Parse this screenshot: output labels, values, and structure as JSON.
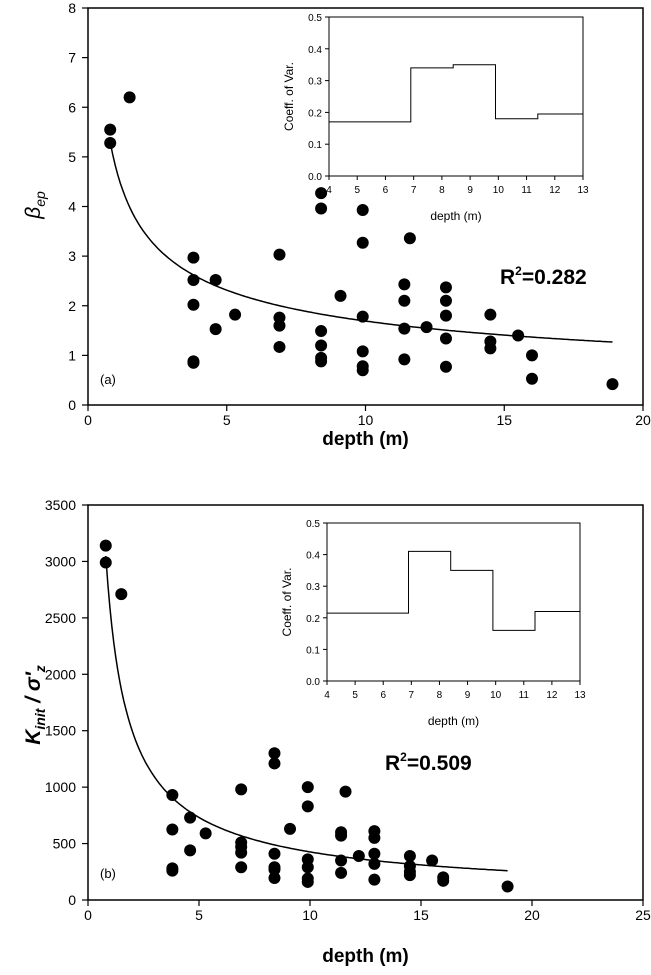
{
  "chart_data": [
    {
      "type": "scatter",
      "panel_label": "(a)",
      "xlabel": "depth (m)",
      "ylabel_main": "β",
      "ylabel_sub": "ep",
      "xlim": [
        0,
        20
      ],
      "ylim": [
        0,
        8
      ],
      "xticks": [
        0,
        5,
        10,
        15,
        20
      ],
      "yticks": [
        0,
        1,
        2,
        3,
        4,
        5,
        6,
        7,
        8
      ],
      "grid": false,
      "annotation": "R²=0.282",
      "annotation_base": "R",
      "annotation_sup": "2",
      "annotation_rest": "=0.282",
      "fit": {
        "type": "power",
        "a": 4.79,
        "b": -0.452,
        "x_range": [
          0.8,
          18.9
        ]
      },
      "points": [
        [
          0.8,
          5.55
        ],
        [
          0.8,
          5.28
        ],
        [
          1.5,
          6.2
        ],
        [
          3.8,
          2.97
        ],
        [
          3.8,
          2.52
        ],
        [
          3.8,
          2.02
        ],
        [
          3.8,
          0.88
        ],
        [
          3.8,
          0.85
        ],
        [
          4.6,
          2.52
        ],
        [
          4.6,
          1.53
        ],
        [
          5.3,
          1.82
        ],
        [
          6.9,
          3.03
        ],
        [
          6.9,
          1.76
        ],
        [
          6.9,
          1.6
        ],
        [
          6.9,
          1.17
        ],
        [
          8.4,
          4.27
        ],
        [
          8.4,
          3.96
        ],
        [
          8.4,
          1.49
        ],
        [
          8.4,
          1.2
        ],
        [
          8.4,
          0.95
        ],
        [
          8.4,
          0.88
        ],
        [
          9.1,
          2.2
        ],
        [
          9.9,
          3.93
        ],
        [
          9.9,
          3.27
        ],
        [
          9.9,
          1.78
        ],
        [
          9.9,
          1.08
        ],
        [
          9.9,
          0.78
        ],
        [
          9.9,
          0.7
        ],
        [
          11.4,
          2.43
        ],
        [
          11.4,
          2.1
        ],
        [
          11.4,
          1.54
        ],
        [
          11.4,
          0.92
        ],
        [
          11.6,
          3.36
        ],
        [
          12.2,
          1.57
        ],
        [
          12.9,
          2.37
        ],
        [
          12.9,
          2.1
        ],
        [
          12.9,
          1.8
        ],
        [
          12.9,
          1.34
        ],
        [
          12.9,
          0.77
        ],
        [
          14.5,
          1.82
        ],
        [
          14.5,
          1.28
        ],
        [
          14.5,
          1.14
        ],
        [
          15.5,
          1.4
        ],
        [
          16,
          1.0
        ],
        [
          16,
          0.53
        ],
        [
          18.9,
          0.42
        ]
      ],
      "inset": {
        "type": "step",
        "xlabel": "depth (m)",
        "ylabel": "Coeff. of Var.",
        "xlim": [
          4,
          13
        ],
        "ylim": [
          0,
          0.5
        ],
        "xticks": [
          4,
          5,
          6,
          7,
          8,
          9,
          10,
          11,
          12,
          13
        ],
        "yticks": [
          "0.0",
          "0.1",
          "0.2",
          "0.3",
          "0.4",
          "0.5"
        ],
        "steps": [
          [
            4,
            6.9,
            0.17
          ],
          [
            6.9,
            8.4,
            0.34
          ],
          [
            8.4,
            9.9,
            0.35
          ],
          [
            9.9,
            11.4,
            0.18
          ],
          [
            11.4,
            13,
            0.195
          ]
        ]
      }
    },
    {
      "type": "scatter",
      "panel_label": "(b)",
      "xlabel": "depth (m)",
      "ylabel_main": "K",
      "ylabel_sub": "init",
      "ylabel_sep": " / σ'",
      "ylabel_sub2": "z",
      "xlim": [
        0,
        25
      ],
      "ylim": [
        0,
        3500
      ],
      "xticks": [
        0,
        5,
        10,
        15,
        20,
        25
      ],
      "yticks": [
        0,
        500,
        1000,
        1500,
        2000,
        2500,
        3000,
        3500
      ],
      "grid": false,
      "annotation": "R²=0.509",
      "annotation_base": "R",
      "annotation_sup": "2",
      "annotation_rest": "=0.509",
      "fit": {
        "type": "power",
        "a": 2562,
        "b": -0.779,
        "x_range": [
          0.8,
          18.9
        ]
      },
      "points": [
        [
          0.8,
          3140
        ],
        [
          0.8,
          2990
        ],
        [
          1.5,
          2710
        ],
        [
          3.8,
          930
        ],
        [
          3.8,
          625
        ],
        [
          3.8,
          280
        ],
        [
          3.8,
          260
        ],
        [
          4.6,
          730
        ],
        [
          4.6,
          440
        ],
        [
          5.3,
          590
        ],
        [
          6.9,
          980
        ],
        [
          6.9,
          510
        ],
        [
          6.9,
          470
        ],
        [
          6.9,
          420
        ],
        [
          6.9,
          290
        ],
        [
          8.4,
          1300
        ],
        [
          8.4,
          1210
        ],
        [
          8.4,
          410
        ],
        [
          8.4,
          290
        ],
        [
          8.4,
          270
        ],
        [
          8.4,
          195
        ],
        [
          9.1,
          630
        ],
        [
          9.9,
          1000
        ],
        [
          9.9,
          830
        ],
        [
          9.9,
          360
        ],
        [
          9.9,
          290
        ],
        [
          9.9,
          190
        ],
        [
          9.9,
          160
        ],
        [
          11.4,
          600
        ],
        [
          11.4,
          570
        ],
        [
          11.4,
          350
        ],
        [
          11.4,
          240
        ],
        [
          11.6,
          960
        ],
        [
          12.2,
          390
        ],
        [
          12.9,
          610
        ],
        [
          12.9,
          550
        ],
        [
          12.9,
          410
        ],
        [
          12.9,
          320
        ],
        [
          12.9,
          180
        ],
        [
          14.5,
          390
        ],
        [
          14.5,
          300
        ],
        [
          14.5,
          250
        ],
        [
          14.5,
          220
        ],
        [
          15.5,
          350
        ],
        [
          16,
          200
        ],
        [
          16,
          170
        ],
        [
          18.9,
          120
        ]
      ],
      "inset": {
        "type": "step",
        "xlabel": "depth (m)",
        "ylabel": "Coeff. of Var.",
        "xlim": [
          4,
          13
        ],
        "ylim": [
          0,
          0.5
        ],
        "xticks": [
          4,
          5,
          6,
          7,
          8,
          9,
          10,
          11,
          12,
          13
        ],
        "yticks": [
          "0.0",
          "0.1",
          "0.2",
          "0.3",
          "0.4",
          "0.5"
        ],
        "steps": [
          [
            4,
            6.9,
            0.215
          ],
          [
            6.9,
            8.4,
            0.41
          ],
          [
            8.4,
            9.9,
            0.35
          ],
          [
            9.9,
            11.4,
            0.16
          ],
          [
            11.4,
            13,
            0.22
          ]
        ]
      }
    }
  ]
}
